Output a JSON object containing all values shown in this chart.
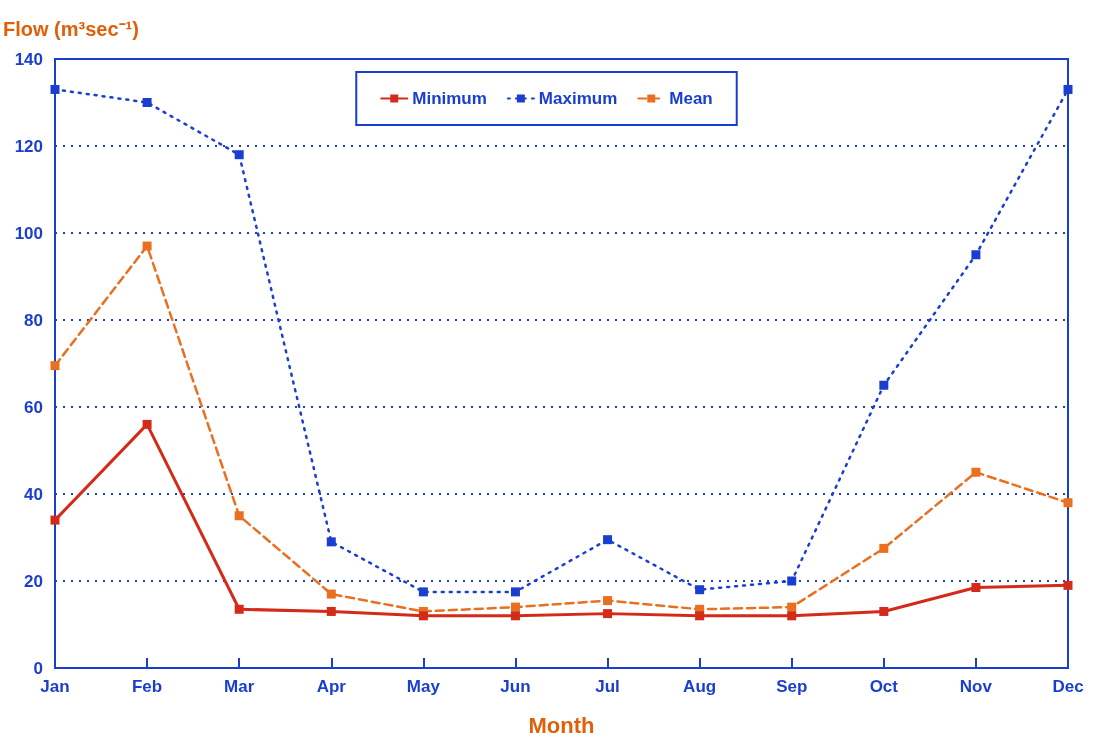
{
  "chart_data": {
    "type": "line",
    "xlabel": "Month",
    "ylabel": "Flow (m³sec⁻¹)",
    "categories": [
      "Jan",
      "Feb",
      "Mar",
      "Apr",
      "May",
      "Jun",
      "Jul",
      "Aug",
      "Sep",
      "Oct",
      "Nov",
      "Dec"
    ],
    "series": [
      {
        "name": "Minimum",
        "color": "#d42a1a",
        "line_style": "solid",
        "values": [
          34,
          56,
          13.5,
          13,
          12,
          12,
          12.5,
          12,
          12,
          13,
          18.5,
          19
        ]
      },
      {
        "name": "Maximum",
        "color": "#1a3fd0",
        "line_style": "dotted",
        "values": [
          133,
          130,
          118,
          29,
          17.5,
          17.5,
          29.5,
          18,
          20,
          65,
          95,
          133
        ]
      },
      {
        "name": "Mean",
        "color": "#e87020",
        "line_style": "dashed",
        "values": [
          69.5,
          97,
          35,
          17,
          13,
          14,
          15.5,
          13.5,
          14,
          27.5,
          45,
          38
        ]
      }
    ],
    "ylim": [
      0,
      140
    ],
    "yticks": [
      0,
      20,
      40,
      60,
      80,
      100,
      120,
      140
    ],
    "grid": "y",
    "legend": "top",
    "marker": "square"
  }
}
